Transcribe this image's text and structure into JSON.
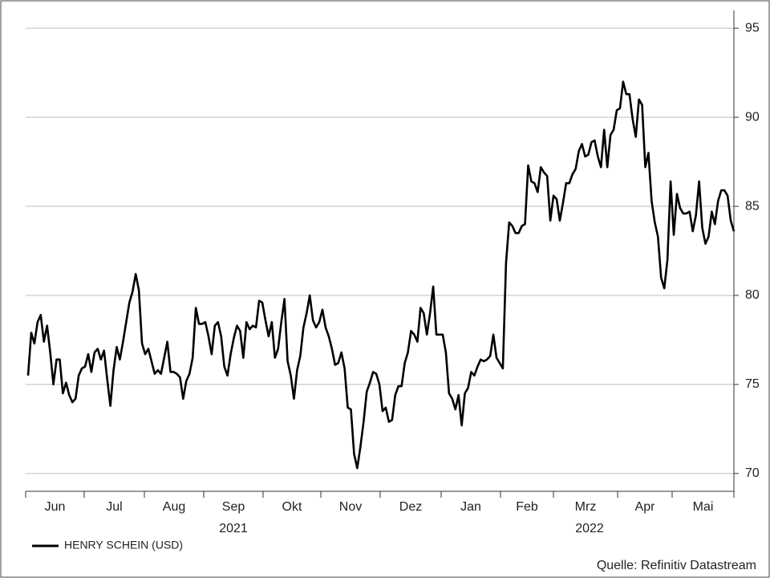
{
  "chart_data": {
    "type": "line",
    "series": [
      {
        "name": "HENRY SCHEIN (USD)",
        "color": "#000000",
        "values": [
          75.5,
          77.9,
          77.3,
          78.5,
          78.9,
          77.4,
          78.3,
          76.8,
          75.0,
          76.4,
          76.4,
          74.5,
          75.1,
          74.4,
          74.0,
          74.2,
          75.5,
          75.9,
          76.0,
          76.7,
          75.7,
          76.8,
          77.0,
          76.4,
          76.9,
          75.3,
          73.8,
          75.8,
          77.1,
          76.4,
          77.4,
          78.5,
          79.6,
          80.2,
          81.2,
          80.3,
          77.3,
          76.7,
          77.0,
          76.3,
          75.6,
          75.8,
          75.6,
          76.5,
          77.4,
          75.7,
          75.7,
          75.6,
          75.4,
          74.2,
          75.2,
          75.6,
          76.5,
          79.3,
          78.4,
          78.4,
          78.5,
          77.7,
          76.7,
          78.3,
          78.5,
          77.7,
          76.0,
          75.5,
          76.7,
          77.6,
          78.3,
          78.0,
          76.5,
          78.5,
          78.1,
          78.3,
          78.2,
          79.7,
          79.6,
          78.6,
          77.7,
          78.5,
          76.5,
          77.0,
          78.5,
          79.8,
          76.3,
          75.5,
          74.2,
          75.8,
          76.6,
          78.2,
          79.0,
          80.0,
          78.6,
          78.2,
          78.5,
          79.2,
          78.2,
          77.7,
          77.0,
          76.1,
          76.2,
          76.8,
          75.9,
          73.7,
          73.6,
          71.1,
          70.3,
          71.5,
          72.9,
          74.6,
          75.1,
          75.7,
          75.6,
          75.0,
          73.5,
          73.7,
          72.9,
          73.0,
          74.4,
          74.9,
          74.9,
          76.2,
          76.8,
          78.0,
          77.8,
          77.4,
          79.3,
          79.0,
          77.8,
          79.0,
          80.5,
          77.8,
          77.8,
          77.8,
          76.8,
          74.5,
          74.2,
          73.6,
          74.4,
          72.7,
          74.5,
          74.8,
          75.7,
          75.5,
          76.0,
          76.4,
          76.3,
          76.4,
          76.6,
          77.8,
          76.5,
          76.2,
          75.9,
          81.8,
          84.1,
          83.9,
          83.5,
          83.5,
          83.9,
          84.0,
          87.3,
          86.4,
          86.3,
          85.8,
          87.2,
          86.9,
          86.7,
          84.2,
          85.6,
          85.4,
          84.2,
          85.2,
          86.3,
          86.3,
          86.8,
          87.1,
          88.1,
          88.5,
          87.8,
          87.9,
          88.6,
          88.7,
          87.8,
          87.2,
          89.3,
          87.2,
          89.0,
          89.3,
          90.4,
          90.5,
          92.0,
          91.3,
          91.3,
          89.9,
          88.9,
          91.0,
          90.7,
          87.2,
          88.0,
          85.3,
          84.1,
          83.3,
          81.0,
          80.4,
          82.0,
          86.4,
          83.4,
          85.7,
          84.9,
          84.6,
          84.6,
          84.7,
          83.6,
          84.5,
          86.4,
          83.8,
          82.9,
          83.3,
          84.7,
          84.0,
          85.3,
          85.9,
          85.9,
          85.6,
          84.2,
          83.6
        ]
      }
    ],
    "months": [
      "Jun",
      "Jul",
      "Aug",
      "Sep",
      "Okt",
      "Nov",
      "Dez",
      "Jan",
      "Feb",
      "Mrz",
      "Apr",
      "Mai"
    ],
    "years": [
      "2021",
      "2022"
    ],
    "ylim": [
      69,
      96
    ],
    "yticks": [
      70,
      75,
      80,
      85,
      90,
      95
    ],
    "grid": true,
    "source": "Quelle: Refinitiv Datastream"
  }
}
